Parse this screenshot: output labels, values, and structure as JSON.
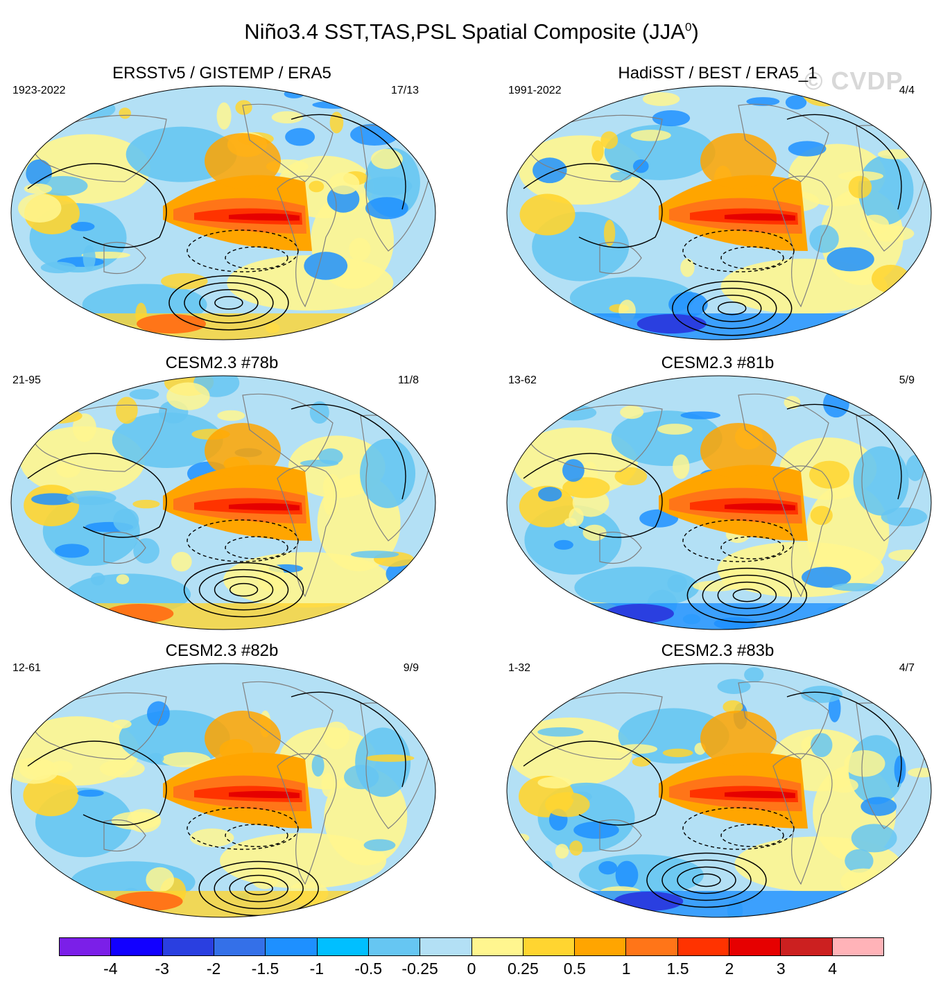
{
  "title": {
    "main": "Niño3.4 SST,TAS,PSL Spatial Composite (JJA",
    "superscript": "0",
    "close": ")"
  },
  "watermark": "© CVDP",
  "panels": [
    {
      "id": "p1",
      "title": "ERSSTv5 / GISTEMP / ERA5",
      "years": "1923-2022",
      "count": "17/13"
    },
    {
      "id": "p2",
      "title": "HadiSST / BEST / ERA5_1",
      "years": "1991-2022",
      "count": "4/4"
    },
    {
      "id": "p3",
      "title": "CESM2.3 #78b",
      "years": "21-95",
      "count": "11/8"
    },
    {
      "id": "p4",
      "title": "CESM2.3 #81b",
      "years": "13-62",
      "count": "5/9"
    },
    {
      "id": "p5",
      "title": "CESM2.3 #82b",
      "years": "12-61",
      "count": "9/9"
    },
    {
      "id": "p6",
      "title": "CESM2.3 #83b",
      "years": "1-32",
      "count": "4/7"
    }
  ],
  "colorbar": {
    "colors": [
      "#7b1fe8",
      "#1200ff",
      "#2a3fe0",
      "#3470e8",
      "#1e90ff",
      "#00bfff",
      "#66c6f2",
      "#b3e0f5",
      "#fff68f",
      "#ffd530",
      "#ffa500",
      "#ff7518",
      "#ff3300",
      "#e60000",
      "#cc2020",
      "#ffb3b8"
    ],
    "labels": [
      "-4",
      "-3",
      "-2",
      "-1.5",
      "-1",
      "-0.5",
      "-0.25",
      "0",
      "0.25",
      "0.5",
      "1",
      "1.5",
      "2",
      "3",
      "4"
    ]
  },
  "palette": {
    "ocean_background": "#b3e0f5",
    "warm_light": "#fff68f",
    "warm_mid": "#ffd530",
    "warm": "#ffa500",
    "hot": "#ff7518",
    "hotter": "#ff3300",
    "hottest": "#e60000",
    "cool": "#66c6f2",
    "cold": "#1e90ff",
    "coldest": "#2a3fe0"
  }
}
